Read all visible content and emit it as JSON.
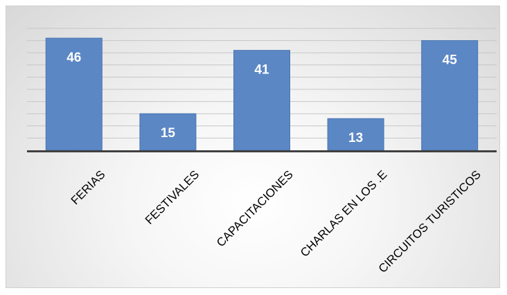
{
  "chart_data": {
    "type": "bar",
    "categories": [
      "FERIAS",
      "FESTIVALES",
      "CAPACITACIONES",
      "CHARLAS EN LOS .E",
      "CIRCUITOS TURISTICOS"
    ],
    "values": [
      46,
      15,
      41,
      13,
      45
    ],
    "title": "",
    "xlabel": "",
    "ylabel": "",
    "ylim": [
      0,
      50
    ],
    "grid": true,
    "bar_color": "#5b87c5",
    "bar_edge_color": "#4a74b0",
    "axis_color": "#404040"
  }
}
